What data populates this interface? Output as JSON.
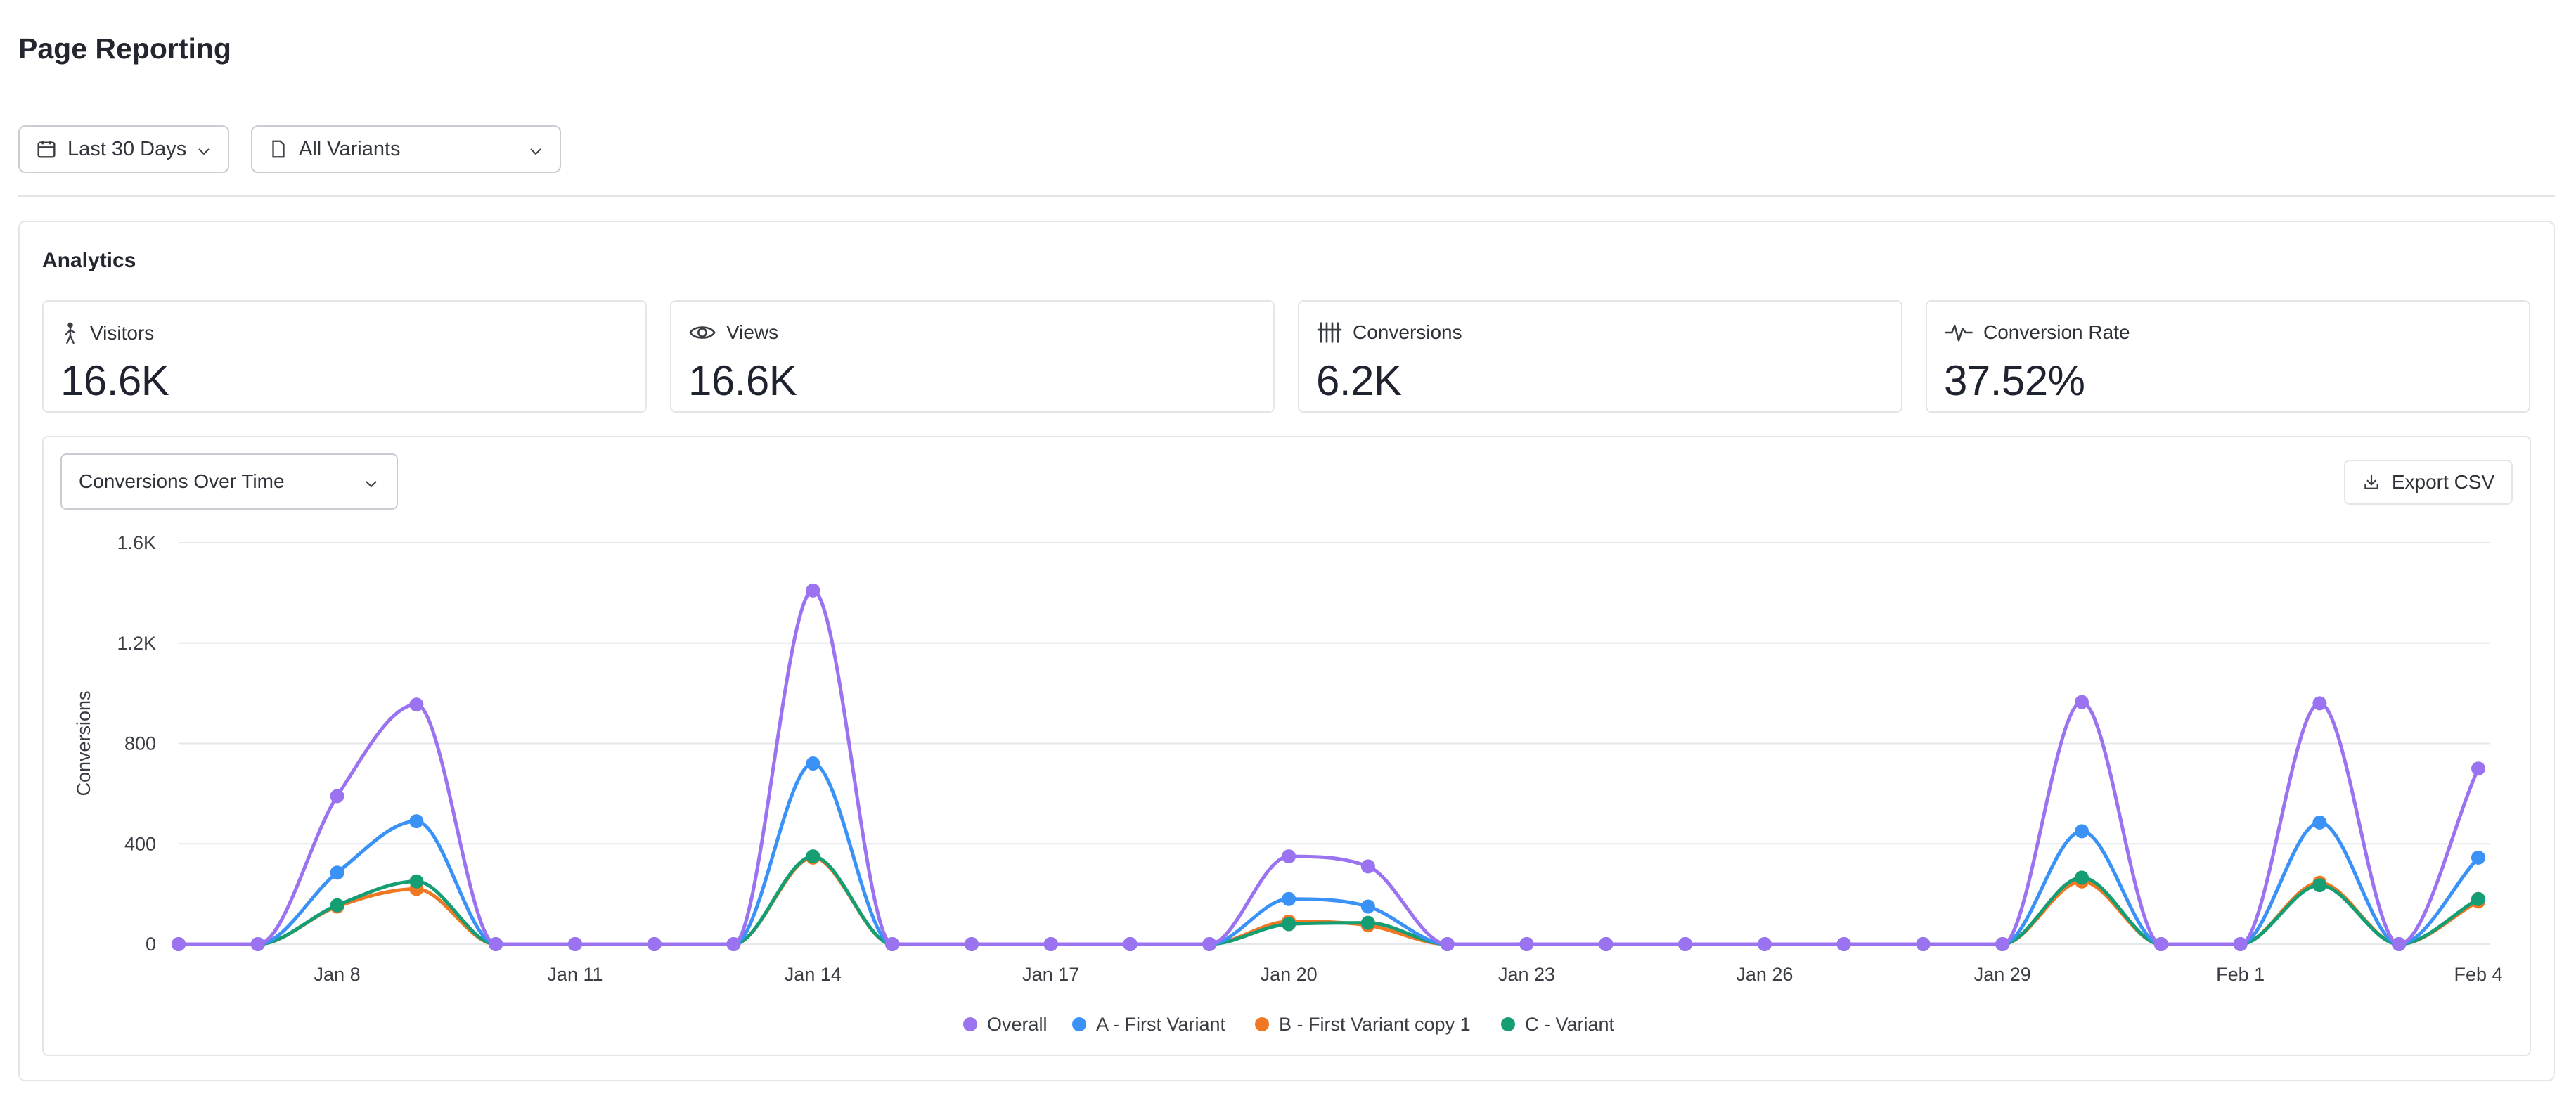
{
  "page": {
    "title": "Page Reporting"
  },
  "filters": {
    "date_range": {
      "label": "Last 30 Days",
      "icon": "calendar-icon"
    },
    "variant": {
      "label": "All Variants",
      "icon": "file-icon"
    }
  },
  "analytics": {
    "title": "Analytics",
    "stats": [
      {
        "label": "Visitors",
        "value": "16.6K",
        "icon": "person-walking-icon"
      },
      {
        "label": "Views",
        "value": "16.6K",
        "icon": "eye-icon"
      },
      {
        "label": "Conversions",
        "value": "6.2K",
        "icon": "tally-icon"
      },
      {
        "label": "Conversion Rate",
        "value": "37.52%",
        "icon": "pulse-icon"
      }
    ],
    "metric_select": {
      "label": "Conversions Over Time"
    },
    "export": {
      "label": "Export CSV",
      "icon": "download-icon"
    }
  },
  "colors": {
    "overall": "#9b73f0",
    "variant_a": "#3a92f7",
    "variant_b": "#f07822",
    "variant_c": "#159e74",
    "grid": "#e6e7ea"
  },
  "chart_data": {
    "type": "line",
    "title": "",
    "xlabel": "",
    "ylabel": "Conversions",
    "ylim": [
      0,
      1600
    ],
    "yticks": [
      0,
      400,
      800,
      1200,
      1600
    ],
    "ytick_labels": [
      "0",
      "400",
      "800",
      "1.2K",
      "1.6K"
    ],
    "x": [
      "Jan 6",
      "Jan 7",
      "Jan 8",
      "Jan 9",
      "Jan 10",
      "Jan 11",
      "Jan 12",
      "Jan 13",
      "Jan 14",
      "Jan 15",
      "Jan 16",
      "Jan 17",
      "Jan 18",
      "Jan 19",
      "Jan 20",
      "Jan 21",
      "Jan 22",
      "Jan 23",
      "Jan 24",
      "Jan 25",
      "Jan 26",
      "Jan 27",
      "Jan 28",
      "Jan 29",
      "Jan 30",
      "Jan 31",
      "Feb 1",
      "Feb 2",
      "Feb 3",
      "Feb 4"
    ],
    "x_tick_labels": [
      "Jan 8",
      "Jan 11",
      "Jan 14",
      "Jan 17",
      "Jan 20",
      "Jan 23",
      "Jan 26",
      "Jan 29",
      "Feb 1",
      "Feb 4"
    ],
    "grid": true,
    "legend_position": "bottom-center",
    "series": [
      {
        "name": "Overall",
        "values": [
          0,
          0,
          590,
          955,
          0,
          0,
          0,
          0,
          1410,
          0,
          0,
          0,
          0,
          0,
          350,
          310,
          0,
          0,
          0,
          0,
          0,
          0,
          0,
          0,
          965,
          0,
          0,
          960,
          0,
          700
        ]
      },
      {
        "name": "A - First Variant",
        "values": [
          0,
          0,
          285,
          490,
          0,
          0,
          0,
          0,
          720,
          0,
          0,
          0,
          0,
          0,
          180,
          150,
          0,
          0,
          0,
          0,
          0,
          0,
          0,
          0,
          450,
          0,
          0,
          485,
          0,
          345
        ]
      },
      {
        "name": "B - First Variant copy 1",
        "values": [
          0,
          0,
          150,
          220,
          0,
          0,
          0,
          0,
          345,
          0,
          0,
          0,
          0,
          0,
          90,
          75,
          0,
          0,
          0,
          0,
          0,
          0,
          0,
          0,
          250,
          0,
          0,
          245,
          0,
          170
        ]
      },
      {
        "name": "C - Variant",
        "values": [
          0,
          0,
          155,
          250,
          0,
          0,
          0,
          0,
          350,
          0,
          0,
          0,
          0,
          0,
          80,
          85,
          0,
          0,
          0,
          0,
          0,
          0,
          0,
          0,
          265,
          0,
          0,
          235,
          0,
          180
        ]
      }
    ]
  }
}
